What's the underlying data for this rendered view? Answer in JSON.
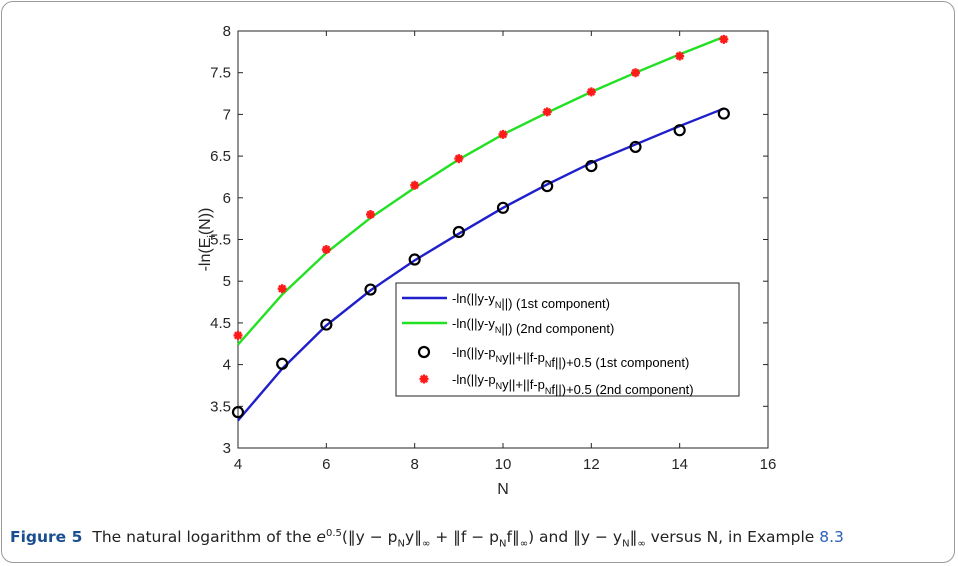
{
  "chart_data": {
    "type": "line",
    "xlabel": "N",
    "ylabel": "-ln(E_i(N))",
    "xlim": [
      4,
      16
    ],
    "ylim": [
      3,
      8
    ],
    "x_ticks": [
      "4",
      "6",
      "8",
      "10",
      "12",
      "14",
      "16"
    ],
    "y_ticks": [
      "3",
      "3.5",
      "4",
      "4.5",
      "5",
      "5.5",
      "6",
      "6.5",
      "7",
      "7.5",
      "8"
    ],
    "grid": false,
    "legend_position": "lower-right",
    "x": [
      4,
      5,
      6,
      7,
      8,
      9,
      10,
      11,
      12,
      13,
      14,
      15
    ],
    "series": [
      {
        "name": "-ln(||y-y_N||) (1st component)",
        "style": "line",
        "color": "#1f1fcc",
        "values": [
          3.33,
          3.95,
          4.47,
          4.89,
          5.25,
          5.57,
          5.88,
          6.16,
          6.42,
          6.64,
          6.86,
          7.07
        ]
      },
      {
        "name": "-ln(||y-y_N||) (2nd component)",
        "style": "line",
        "color": "#22e022",
        "values": [
          4.24,
          4.84,
          5.34,
          5.76,
          6.12,
          6.46,
          6.76,
          7.02,
          7.27,
          7.5,
          7.72,
          7.93
        ]
      },
      {
        "name": "-ln(||y-p_Ny||+||f-p_Nf||)+0.5 (1st component)",
        "style": "circle",
        "color": "#000000",
        "values": [
          3.43,
          4.01,
          4.48,
          4.9,
          5.26,
          5.59,
          5.88,
          6.14,
          6.38,
          6.61,
          6.81,
          7.01
        ]
      },
      {
        "name": "-ln(||y-p_Ny||+||f-p_Nf||)+0.5  (2nd component)",
        "style": "star",
        "color": "#ff1a1a",
        "values": [
          4.35,
          4.91,
          5.38,
          5.8,
          6.15,
          6.47,
          6.76,
          7.03,
          7.27,
          7.5,
          7.7,
          7.9
        ]
      }
    ]
  },
  "caption": {
    "label": "Figure 5",
    "text_before": "The natural logarithm of the ",
    "formula_1": "e",
    "formula_1_sup": "0.5",
    "formula_2": "(‖y − p",
    "formula_2_sub": "N",
    "formula_3": "y‖",
    "formula_3_sub": "∞",
    "formula_4": " + ‖f − p",
    "formula_4_sub": "N",
    "formula_5": "f‖",
    "formula_5_sub": "∞",
    "formula_6": ") and ‖y − y",
    "formula_6_sub": "N",
    "formula_7": "‖",
    "formula_7_sub": "∞",
    "text_after": " versus N, in Example ",
    "ref": "8.3"
  }
}
